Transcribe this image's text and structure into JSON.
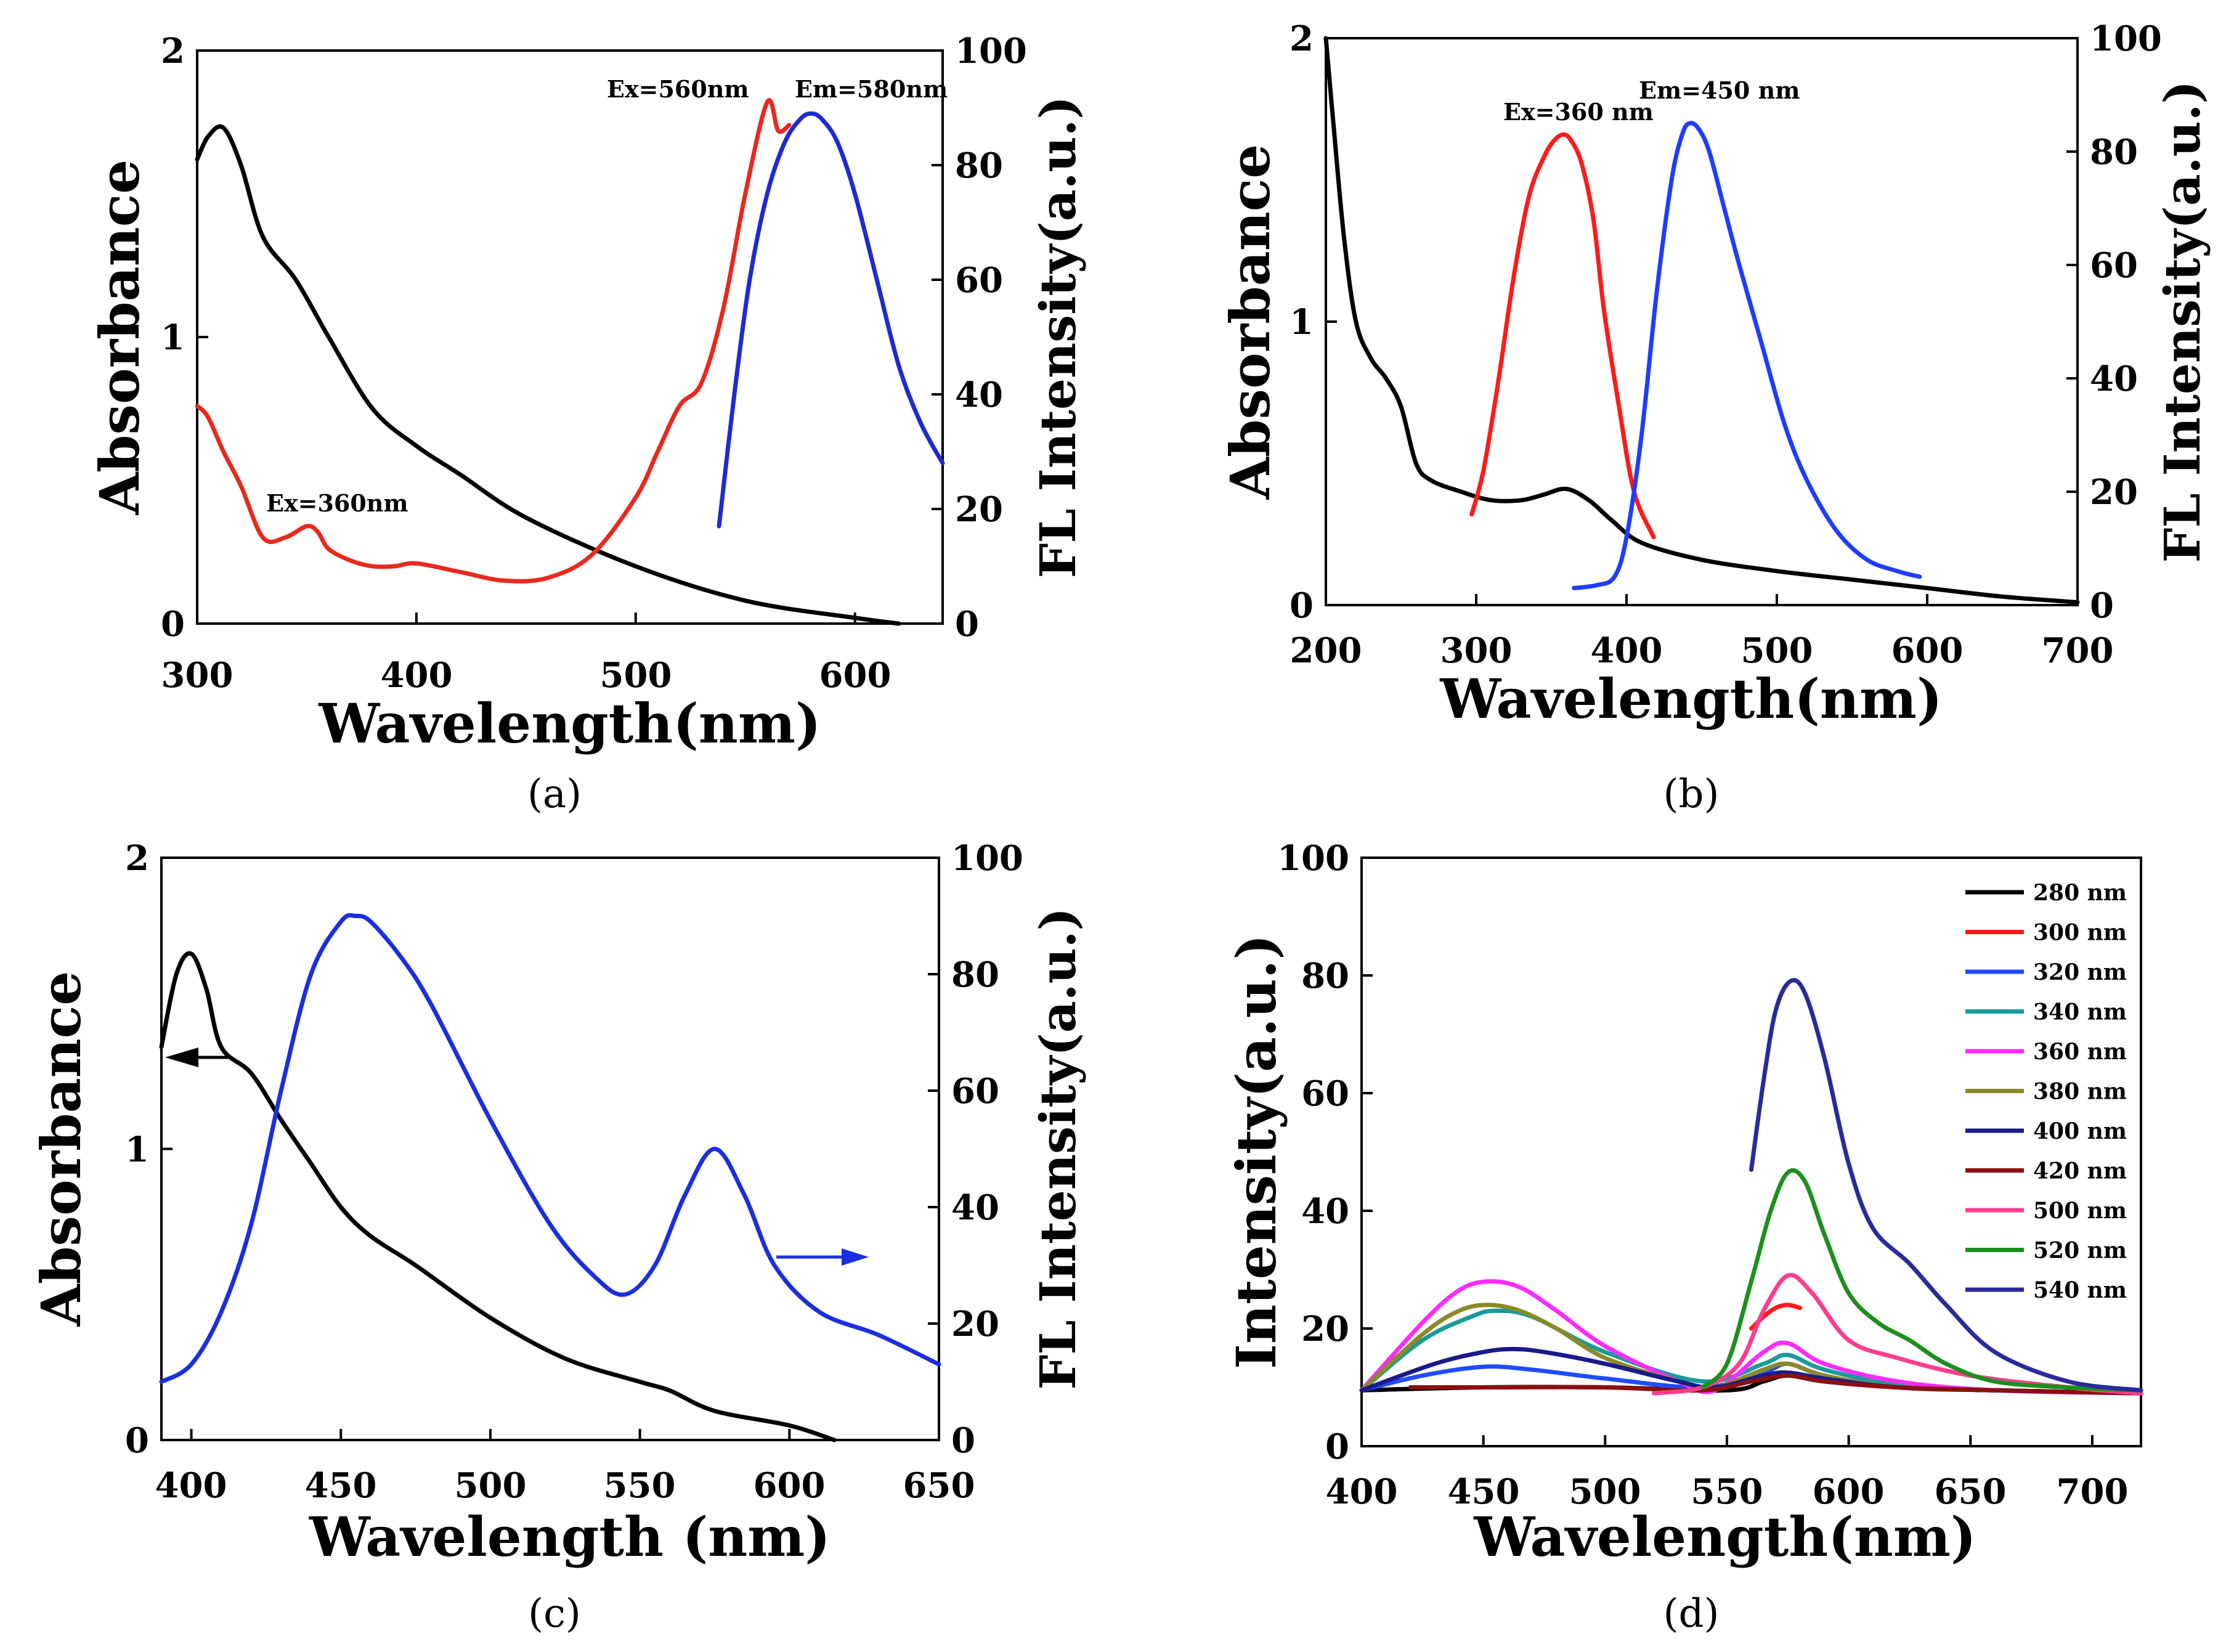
{
  "chart_data": [
    {
      "panel": "a",
      "caption": "(a)",
      "type": "line",
      "xlabel": "Wavelength(nm)",
      "ylabel": "Absorbance",
      "y2label": "FL Intensity(a.u.)",
      "xlim": [
        300,
        640
      ],
      "ylim": [
        0,
        2
      ],
      "y2lim": [
        0,
        100
      ],
      "xticks": [
        "300",
        "400",
        "500",
        "600"
      ],
      "yticks": [
        "0",
        "1",
        "2"
      ],
      "y2ticks": [
        "0",
        "20",
        "40",
        "60",
        "80",
        "100"
      ],
      "annotations": [
        "Ex=560nm",
        "Em=580nm",
        "Ex=360nm"
      ],
      "series": [
        {
          "name": "Absorbance",
          "color": "#000000",
          "axis": "left",
          "x": [
            300,
            305,
            312,
            320,
            330,
            345,
            360,
            380,
            400,
            420,
            450,
            500,
            550,
            600,
            620
          ],
          "y": [
            1.62,
            1.7,
            1.73,
            1.6,
            1.35,
            1.2,
            1.0,
            0.75,
            0.62,
            0.52,
            0.37,
            0.2,
            0.08,
            0.02,
            0.0
          ]
        },
        {
          "name": "Ex=360nm",
          "color": "#e8291e",
          "axis": "right",
          "x": [
            300,
            305,
            312,
            320,
            330,
            340,
            350,
            355,
            360,
            370,
            380,
            390,
            400,
            420,
            440,
            460,
            480,
            500,
            510,
            520,
            530,
            540,
            550,
            560,
            565,
            570
          ],
          "y": [
            38,
            36,
            30,
            24,
            15,
            15,
            17,
            16,
            13,
            11,
            10,
            10,
            10.5,
            9,
            7.5,
            8,
            12,
            22,
            30,
            38,
            42,
            55,
            75,
            91,
            86,
            87
          ]
        },
        {
          "name": "Em=580nm",
          "color": "#1e2bd0",
          "axis": "right",
          "x": [
            538,
            545,
            552,
            560,
            568,
            575,
            580,
            585,
            592,
            600,
            610,
            620,
            630,
            640
          ],
          "y": [
            17,
            40,
            60,
            75,
            84,
            88,
            89,
            88,
            84,
            75,
            60,
            45,
            35,
            28
          ]
        }
      ]
    },
    {
      "panel": "b",
      "caption": "(b)",
      "type": "line",
      "xlabel": "Wavelength(nm)",
      "ylabel": "Absorbance",
      "y2label": "FL Intensity(a.u.)",
      "xlim": [
        200,
        700
      ],
      "ylim": [
        0,
        2
      ],
      "y2lim": [
        0,
        100
      ],
      "xticks": [
        "200",
        "300",
        "400",
        "500",
        "600",
        "700"
      ],
      "yticks": [
        "0",
        "1",
        "2"
      ],
      "y2ticks": [
        "0",
        "20",
        "40",
        "60",
        "80",
        "100"
      ],
      "annotations": [
        "Ex=360 nm",
        "Em=450 nm"
      ],
      "series": [
        {
          "name": "Absorbance",
          "color": "#000000",
          "axis": "left",
          "x": [
            200,
            205,
            212,
            220,
            230,
            240,
            250,
            260,
            270,
            290,
            310,
            330,
            345,
            360,
            375,
            390,
            410,
            450,
            500,
            550,
            600,
            650,
            700
          ],
          "y": [
            2.0,
            1.7,
            1.3,
            1.0,
            0.87,
            0.8,
            0.7,
            0.5,
            0.44,
            0.4,
            0.37,
            0.37,
            0.39,
            0.41,
            0.37,
            0.3,
            0.22,
            0.16,
            0.12,
            0.09,
            0.06,
            0.03,
            0.01
          ]
        },
        {
          "name": "Ex=360 nm",
          "color": "#ff1a1a",
          "axis": "right",
          "x": [
            297,
            305,
            315,
            325,
            335,
            345,
            352,
            358,
            363,
            370,
            378,
            385,
            395,
            405,
            418
          ],
          "y": [
            16,
            24,
            40,
            58,
            72,
            79,
            82,
            83,
            82,
            78,
            68,
            52,
            35,
            20,
            12
          ]
        },
        {
          "name": "Em=450 nm",
          "color": "#1f3cff",
          "axis": "right",
          "x": [
            365,
            380,
            392,
            400,
            410,
            420,
            430,
            437,
            442,
            448,
            455,
            465,
            475,
            490,
            505,
            520,
            540,
            560,
            580,
            595
          ],
          "y": [
            3,
            3.5,
            5,
            12,
            30,
            55,
            75,
            83,
            85,
            84,
            80,
            70,
            60,
            46,
            32,
            22,
            13,
            8,
            6,
            5
          ]
        }
      ]
    },
    {
      "panel": "c",
      "caption": "(c)",
      "type": "line",
      "xlabel": "Wavelength (nm)",
      "ylabel": "Absorbance",
      "y2label": "FL Intensity(a.u.)",
      "xlim": [
        390,
        650
      ],
      "ylim": [
        0,
        2
      ],
      "y2lim": [
        0,
        100
      ],
      "xticks": [
        "400",
        "450",
        "500",
        "550",
        "600",
        "650"
      ],
      "yticks": [
        "0",
        "1",
        "2"
      ],
      "y2ticks": [
        "0",
        "20",
        "40",
        "60",
        "80",
        "100"
      ],
      "annotations": [],
      "series": [
        {
          "name": "Absorbance",
          "color": "#000000",
          "axis": "left",
          "x": [
            390,
            395,
            400,
            405,
            410,
            420,
            430,
            440,
            450,
            460,
            475,
            500,
            525,
            550,
            560,
            575,
            600,
            615
          ],
          "y": [
            1.35,
            1.6,
            1.67,
            1.55,
            1.35,
            1.26,
            1.1,
            0.95,
            0.8,
            0.7,
            0.6,
            0.42,
            0.28,
            0.2,
            0.17,
            0.1,
            0.05,
            0.0
          ]
        },
        {
          "name": "FL",
          "color": "#1b2ee0",
          "axis": "right",
          "x": [
            390,
            400,
            410,
            420,
            430,
            440,
            450,
            455,
            460,
            470,
            480,
            500,
            520,
            535,
            545,
            555,
            565,
            575,
            585,
            595,
            610,
            630,
            650
          ],
          "y": [
            10,
            13,
            22,
            37,
            60,
            80,
            89,
            90,
            89,
            83,
            75,
            55,
            37,
            28,
            25,
            30,
            42,
            50,
            42,
            30,
            22,
            18,
            13
          ]
        }
      ]
    },
    {
      "panel": "d",
      "caption": "(d)",
      "type": "line",
      "xlabel": "Wavelength(nm)",
      "ylabel": "Intensity(a.u.)",
      "xlim": [
        400,
        720
      ],
      "ylim": [
        0,
        100
      ],
      "xticks": [
        "400",
        "450",
        "500",
        "550",
        "600",
        "650",
        "700"
      ],
      "yticks": [
        "0",
        "20",
        "40",
        "60",
        "80",
        "100"
      ],
      "legend_position": "top-right",
      "series": [
        {
          "name": "280 nm",
          "color": "#000000",
          "x": [
            400,
            450,
            500,
            550,
            565,
            575,
            590,
            620,
            660,
            720
          ],
          "y": [
            9.5,
            10,
            10,
            9.5,
            11,
            12,
            11,
            10,
            9.5,
            9
          ]
        },
        {
          "name": "300 nm",
          "color": "#ff1a1a",
          "x": [
            560,
            565,
            570,
            575,
            580
          ],
          "y": [
            20,
            22,
            23.5,
            24,
            23.5
          ]
        },
        {
          "name": "320 nm",
          "color": "#1f4cff",
          "x": [
            400,
            425,
            450,
            470,
            500,
            540,
            565,
            575,
            590,
            620,
            660,
            720
          ],
          "y": [
            9.5,
            12,
            13.5,
            13,
            11.5,
            10,
            12.5,
            14,
            12,
            10,
            9.5,
            9
          ]
        },
        {
          "name": "340 nm",
          "color": "#1a9a9a",
          "x": [
            400,
            425,
            445,
            455,
            470,
            500,
            540,
            565,
            575,
            590,
            620,
            660,
            720
          ],
          "y": [
            9.5,
            18,
            22,
            23,
            22,
            16,
            11,
            14,
            15.5,
            13,
            10.5,
            9.5,
            9
          ]
        },
        {
          "name": "360 nm",
          "color": "#ff2bff",
          "x": [
            400,
            425,
            440,
            452,
            465,
            480,
            500,
            530,
            545,
            565,
            575,
            590,
            620,
            660,
            720
          ],
          "y": [
            9.5,
            21,
            26.5,
            28,
            27,
            23,
            17,
            11,
            9.5,
            16,
            17.5,
            14,
            11,
            9.5,
            9
          ]
        },
        {
          "name": "380 nm",
          "color": "#8a8a2a",
          "x": [
            400,
            425,
            440,
            452,
            465,
            480,
            500,
            530,
            545,
            565,
            575,
            590,
            620,
            660,
            720
          ],
          "y": [
            9.5,
            19,
            23,
            24,
            23,
            20,
            15,
            11,
            10,
            13,
            14,
            12,
            10,
            9.5,
            9
          ]
        },
        {
          "name": "400 nm",
          "color": "#1a1a8a",
          "x": [
            400,
            430,
            450,
            462,
            475,
            500,
            530,
            545,
            565,
            575,
            590,
            620,
            660,
            720
          ],
          "y": [
            9.5,
            14,
            16,
            16.5,
            16,
            14,
            11,
            10,
            12,
            12.5,
            11.5,
            10,
            9.5,
            9
          ]
        },
        {
          "name": "420 nm",
          "color": "#8b1010",
          "x": [
            420,
            450,
            500,
            540,
            560,
            575,
            590,
            620,
            660,
            720
          ],
          "y": [
            10,
            10,
            10,
            9.5,
            11,
            12,
            11,
            10,
            9.5,
            9
          ]
        },
        {
          "name": "500 nm",
          "color": "#ff3d8f",
          "x": [
            520,
            540,
            555,
            565,
            575,
            585,
            600,
            620,
            650,
            690,
            720
          ],
          "y": [
            9,
            10,
            14,
            23,
            29,
            26,
            18,
            15,
            12,
            10,
            9
          ]
        },
        {
          "name": "520 nm",
          "color": "#1e8f1e",
          "x": [
            540,
            550,
            560,
            568,
            575,
            582,
            590,
            600,
            612,
            625,
            640,
            660,
            690,
            720
          ],
          "y": [
            10,
            14,
            28,
            40,
            46.5,
            45,
            36,
            26,
            21,
            18,
            14,
            11,
            10,
            9.5
          ]
        },
        {
          "name": "540 nm",
          "color": "#2a2a9a",
          "x": [
            560,
            565,
            570,
            576,
            582,
            590,
            600,
            610,
            625,
            640,
            660,
            690,
            720
          ],
          "y": [
            47,
            62,
            74,
            79,
            77,
            66,
            48,
            37,
            31,
            24,
            16,
            11,
            9.5
          ]
        }
      ]
    }
  ]
}
